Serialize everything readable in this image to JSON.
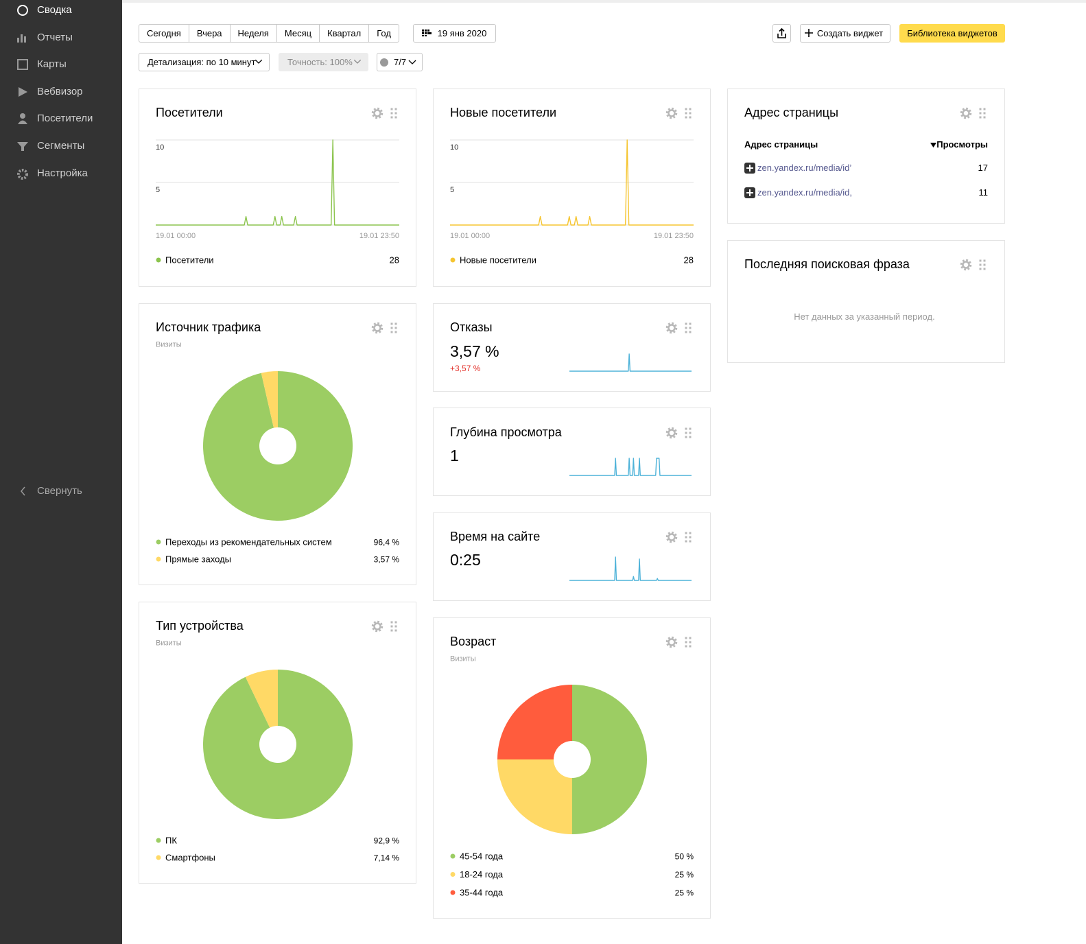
{
  "sidebar": {
    "items": [
      "Сводка",
      "Отчеты",
      "Карты",
      "Вебвизор",
      "Посетители",
      "Сегменты",
      "Настройка"
    ],
    "collapse": "Свернуть"
  },
  "toolbar": {
    "periods": [
      "Сегодня",
      "Вчера",
      "Неделя",
      "Месяц",
      "Квартал",
      "Год"
    ],
    "date": "19 янв 2020",
    "create_widget": "Создать виджет",
    "library": "Библиотека виджетов",
    "detail": "Детализация: по 10 минут",
    "accuracy": "Точность: 100%",
    "segments": "7/7"
  },
  "widgets": {
    "visitors": {
      "title": "Посетители",
      "total": 28,
      "chart_data": {
        "type": "line",
        "x": [
          0,
          520,
          530,
          540,
          690,
          700,
          710,
          730,
          740,
          750,
          810,
          820,
          830,
          1030,
          1040,
          1050,
          1430
        ],
        "series": [
          {
            "name": "Посетители",
            "color": "#8cc44e",
            "values": [
              0,
              0,
              1,
              0,
              0,
              1,
              0,
              0,
              1,
              0,
              0,
              1,
              0,
              0,
              10,
              0,
              0
            ]
          }
        ],
        "xlim": [
          0,
          1430
        ],
        "ylim": [
          0,
          10
        ],
        "xticks": [
          {
            "value": 0,
            "label": "19.01 00:00"
          },
          {
            "value": 1430,
            "label": "19.01 23:50"
          }
        ],
        "yticks": [
          5,
          10
        ],
        "grid": true
      }
    },
    "new_visitors": {
      "title": "Новые посетители",
      "total": 28,
      "chart_data": {
        "type": "line",
        "x": [
          0,
          520,
          530,
          540,
          690,
          700,
          710,
          730,
          740,
          750,
          810,
          820,
          830,
          1030,
          1040,
          1050,
          1430
        ],
        "series": [
          {
            "name": "Новые посетители",
            "color": "#f5c531",
            "values": [
              0,
              0,
              1,
              0,
              0,
              1,
              0,
              0,
              1,
              0,
              0,
              1,
              0,
              0,
              10,
              0,
              0
            ]
          }
        ],
        "xlim": [
          0,
          1430
        ],
        "ylim": [
          0,
          10
        ],
        "xticks": [
          {
            "value": 0,
            "label": "19.01 00:00"
          },
          {
            "value": 1430,
            "label": "19.01 23:50"
          }
        ],
        "yticks": [
          5,
          10
        ],
        "grid": true
      }
    },
    "address": {
      "title": "Адрес страницы",
      "columns": [
        "Адрес страницы",
        "Просмотры"
      ],
      "rows": [
        [
          "zen.yandex.ru/media/id’",
          17
        ],
        [
          "zen.yandex.ru/media/id,",
          11
        ]
      ]
    },
    "search": {
      "title": "Последняя поисковая фраза",
      "empty": "Нет данных за указанный период."
    },
    "source": {
      "title": "Источник трафика",
      "subtitle": "Визиты",
      "chart_data": {
        "type": "pie",
        "categories": [
          "Переходы из рекомендательных систем",
          "Прямые заходы"
        ],
        "values": [
          96.4,
          3.57
        ],
        "value_labels": [
          "96,4 %",
          "3,57 %"
        ],
        "colors": [
          "#9ccd63",
          "#ffd966"
        ]
      }
    },
    "bounce": {
      "title": "Отказы",
      "value": "3,57 %",
      "change": "+3,57 %",
      "chart_data": {
        "type": "line",
        "x": [
          0,
          690,
          700,
          710,
          1430
        ],
        "series": [
          {
            "color": "#4fb3d9",
            "values": [
              0,
              0,
              100,
              0,
              0
            ]
          }
        ],
        "xlim": [
          0,
          1430
        ],
        "ylim": [
          0,
          100
        ]
      }
    },
    "depth": {
      "title": "Глубина просмотра",
      "value": "1",
      "chart_data": {
        "type": "line",
        "x": [
          0,
          530,
          540,
          550,
          690,
          700,
          710,
          740,
          750,
          760,
          810,
          820,
          830,
          1010,
          1020,
          1050,
          1060,
          1430
        ],
        "series": [
          {
            "color": "#4fb3d9",
            "values": [
              0,
              0,
              1,
              0,
              0,
              1,
              0,
              0,
              1,
              0,
              0,
              1,
              0,
              0,
              1,
              1,
              0,
              0
            ]
          }
        ],
        "xlim": [
          0,
          1430
        ],
        "ylim": [
          0,
          1
        ]
      }
    },
    "time": {
      "title": "Время на сайте",
      "value": "0:25",
      "chart_data": {
        "type": "line",
        "x": [
          0,
          530,
          540,
          550,
          740,
          750,
          760,
          810,
          820,
          830,
          1020,
          1030,
          1040,
          1430
        ],
        "series": [
          {
            "color": "#4fb3d9",
            "values": [
              0,
              0,
              60,
              0,
              0,
              10,
              0,
              0,
              55,
              0,
              0,
              5,
              0,
              0
            ]
          }
        ],
        "xlim": [
          0,
          1430
        ],
        "ylim": [
          0,
          60
        ]
      }
    },
    "device": {
      "title": "Тип устройства",
      "subtitle": "Визиты",
      "chart_data": {
        "type": "pie",
        "categories": [
          "ПК",
          "Смартфоны"
        ],
        "values": [
          92.9,
          7.14
        ],
        "value_labels": [
          "92,9 %",
          "7,14 %"
        ],
        "colors": [
          "#9ccd63",
          "#ffd966"
        ]
      }
    },
    "age": {
      "title": "Возраст",
      "subtitle": "Визиты",
      "chart_data": {
        "type": "pie",
        "categories": [
          "45-54 года",
          "18-24 года",
          "35-44 года"
        ],
        "values": [
          50,
          25,
          25
        ],
        "value_labels": [
          "50 %",
          "25 %",
          "25 %"
        ],
        "colors": [
          "#9ccd63",
          "#ffd966",
          "#ff5c3d"
        ]
      }
    }
  }
}
